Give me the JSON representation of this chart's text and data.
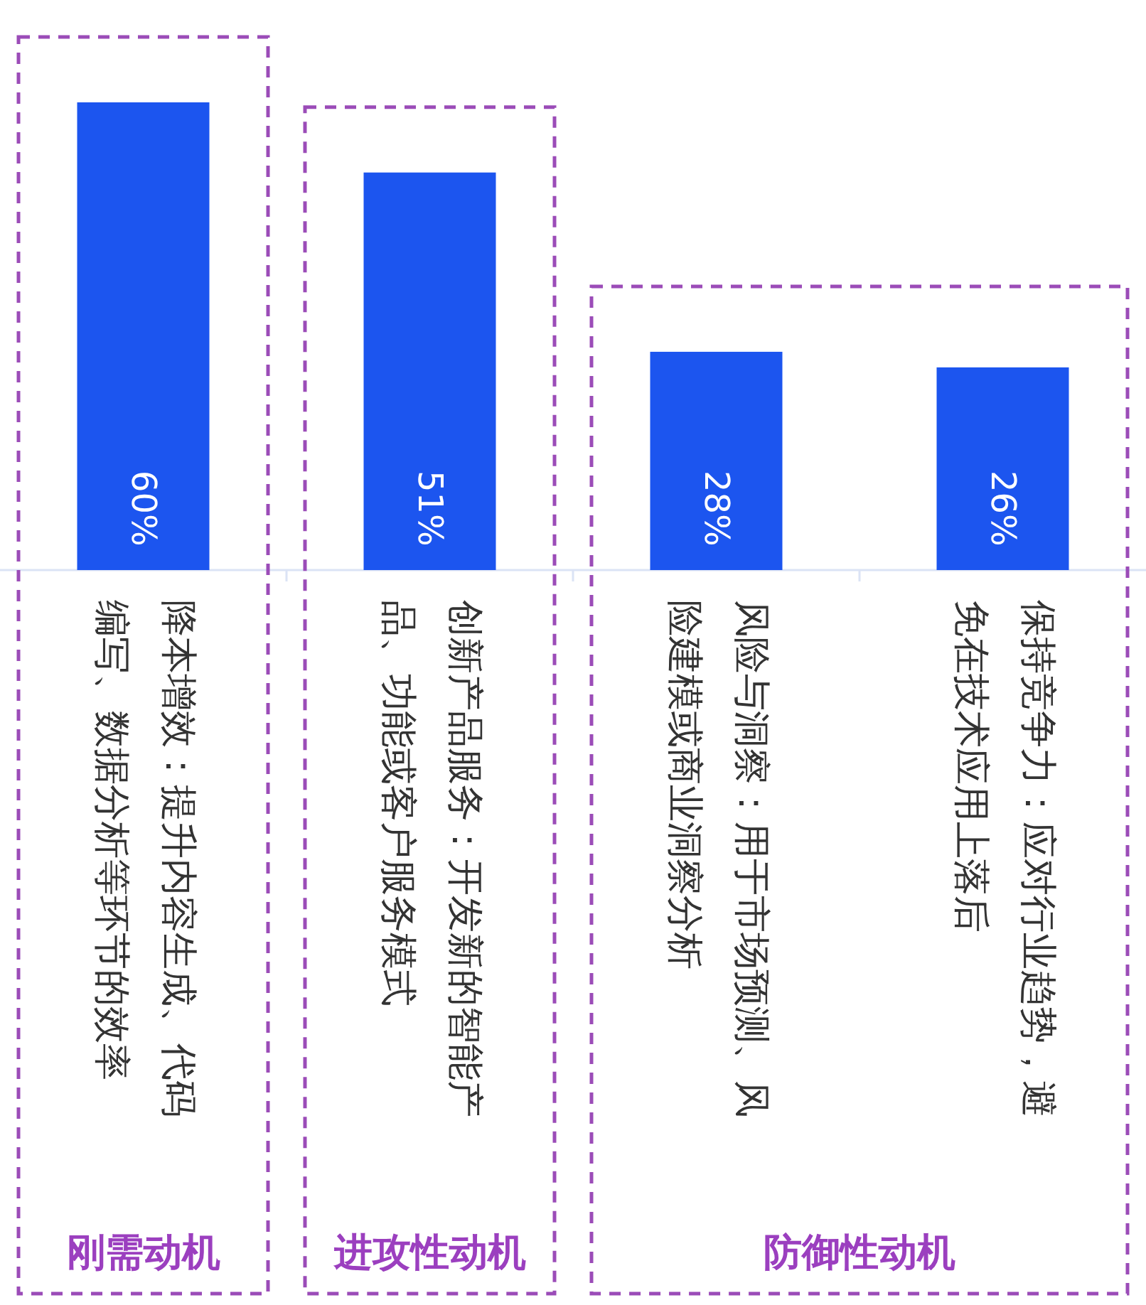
{
  "chart_data": {
    "type": "bar",
    "categories": [
      "降本增效：提升内容生成、代码编写、数据分析等环节的效率",
      "创新产品服务：开发新的智能产品、功能或客户服务模式",
      "风险与洞察：用于市场预测、风险建模或商业洞察分析",
      "保持竞争力：应对行业趋势，避免在技术应用上落后"
    ],
    "values": [
      60,
      51,
      28,
      26
    ],
    "value_labels": [
      "60%",
      "51%",
      "28%",
      "26%"
    ],
    "color": "#1c55ef",
    "annotations": [
      "刚需动机",
      "进攻性动机",
      "防御性动机"
    ]
  }
}
